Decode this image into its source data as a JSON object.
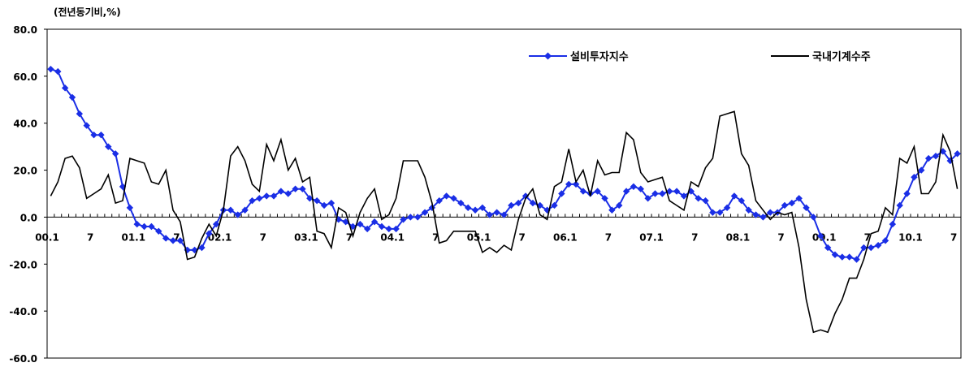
{
  "chart_data": {
    "type": "line",
    "unit_label": "(전년동기비,%)",
    "ylim": [
      -60,
      80
    ],
    "yticks": [
      "80.0",
      "60.0",
      "40.0",
      "20.0",
      "0.0",
      "-20.0",
      "-40.0",
      "-60.0"
    ],
    "ytick_values": [
      80,
      60,
      40,
      20,
      0,
      -20,
      -40,
      -60
    ],
    "xtick_labels": [
      "00.1",
      "7",
      "01.1",
      "7",
      "02.1",
      "7",
      "03.1",
      "7",
      "04.1",
      "7",
      "05.1",
      "7",
      "06.1",
      "7",
      "07.1",
      "7",
      "08.1",
      "7",
      "09.1",
      "7",
      "10.1",
      "7"
    ],
    "series": [
      {
        "name": "설비투자지수",
        "color": "#1a2ee6",
        "marker": "diamond",
        "values": [
          63,
          62,
          55,
          51,
          44,
          39,
          35,
          35,
          30,
          27,
          13,
          4,
          -3,
          -4,
          -4,
          -6,
          -9,
          -10,
          -10,
          -14,
          -14,
          -13,
          -7,
          -3,
          3,
          3,
          1,
          3,
          7,
          8,
          9,
          9,
          11,
          10,
          12,
          12,
          8,
          7,
          5,
          6,
          -1,
          -2,
          -4,
          -3,
          -5,
          -2,
          -4,
          -5,
          -5,
          -1,
          0,
          0,
          2,
          4,
          7,
          9,
          8,
          6,
          4,
          3,
          4,
          1,
          2,
          1,
          5,
          6,
          9,
          6,
          5,
          3,
          5,
          10,
          14,
          14,
          11,
          10,
          11,
          8,
          3,
          5,
          11,
          13,
          12,
          8,
          10,
          10,
          11,
          11,
          9,
          11,
          8,
          7,
          2,
          2,
          4,
          9,
          7,
          3,
          1,
          0,
          2,
          2,
          5,
          6,
          8,
          4,
          0,
          -8,
          -13,
          -16,
          -17,
          -17,
          -18,
          -13,
          -13,
          -12,
          -10,
          -3,
          5,
          10,
          17,
          20,
          25,
          26,
          28,
          24,
          27
        ]
      },
      {
        "name": "국내기계수주",
        "color": "#000000",
        "marker": "none",
        "values": [
          9,
          15,
          25,
          26,
          21,
          8,
          10,
          12,
          18,
          6,
          7,
          25,
          24,
          23,
          15,
          14,
          20,
          3,
          -2,
          -18,
          -17,
          -9,
          -3,
          -8,
          3,
          26,
          30,
          24,
          14,
          11,
          31,
          24,
          33,
          20,
          25,
          15,
          17,
          -6,
          -7,
          -13,
          4,
          2,
          -8,
          2,
          8,
          12,
          -1,
          1,
          8,
          24,
          24,
          24,
          17,
          6,
          -11,
          -10,
          -6,
          -6,
          -6,
          -6,
          -15,
          -13,
          -15,
          -12,
          -14,
          -1,
          8,
          12,
          1,
          -1,
          13,
          15,
          29,
          15,
          20,
          9,
          24,
          18,
          19,
          19,
          36,
          33,
          19,
          15,
          16,
          17,
          7,
          5,
          3,
          15,
          13,
          21,
          25,
          43,
          44,
          45,
          27,
          22,
          7,
          3,
          -1,
          2,
          1,
          2,
          -13,
          -35,
          -49,
          -48,
          -49,
          -41,
          -35,
          -26,
          -26,
          -18,
          -7,
          -6,
          4,
          1,
          25,
          23,
          30,
          10,
          10,
          15,
          35,
          28,
          12
        ]
      }
    ]
  }
}
